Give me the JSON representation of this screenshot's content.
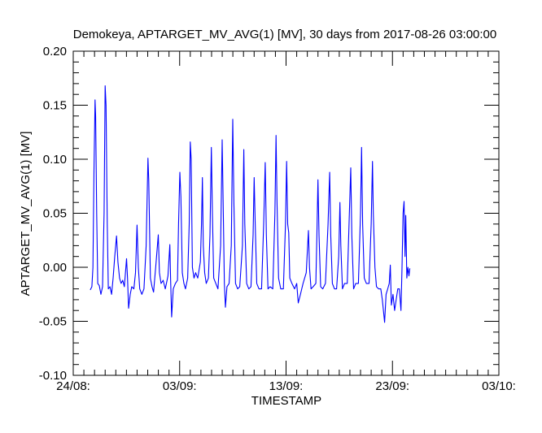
{
  "chart_data": {
    "type": "line",
    "title": "Demokeya, APTARGET_MV_AVG(1) [MV], 30 days from  2017-08-26 03:00:00",
    "xlabel": "TIMESTAMP",
    "ylabel": "APTARGET_MV_AVG(1) [MV]",
    "xlim_days_from_24_08": [
      0,
      40
    ],
    "ylim": [
      -0.1,
      0.2
    ],
    "x_ticks": [
      {
        "day": 0,
        "label": "24/08:"
      },
      {
        "day": 10,
        "label": "03/09:"
      },
      {
        "day": 20,
        "label": "13/09:"
      },
      {
        "day": 30,
        "label": "23/09:"
      },
      {
        "day": 40,
        "label": "03/10:"
      }
    ],
    "y_ticks": [
      {
        "value": -0.1,
        "label": "-0.10"
      },
      {
        "value": -0.05,
        "label": "-0.05"
      },
      {
        "value": 0.0,
        "label": "0.00"
      },
      {
        "value": 0.05,
        "label": "0.05"
      },
      {
        "value": 0.1,
        "label": "0.10"
      },
      {
        "value": 0.15,
        "label": "0.15"
      },
      {
        "value": 0.2,
        "label": "0.20"
      }
    ],
    "x_minor_step_days": 1,
    "y_minor_step": 0.01,
    "grid": false,
    "series": [
      {
        "name": "APTARGET_MV_AVG(1)",
        "color": "#0000ff",
        "points": [
          [
            1.6,
            -0.021
          ],
          [
            1.75,
            -0.018
          ],
          [
            1.85,
            0.0
          ],
          [
            1.95,
            0.09
          ],
          [
            2.05,
            0.155
          ],
          [
            2.1,
            0.14
          ],
          [
            2.2,
            0.05
          ],
          [
            2.3,
            -0.015
          ],
          [
            2.45,
            -0.017
          ],
          [
            2.6,
            -0.025
          ],
          [
            2.75,
            -0.018
          ],
          [
            2.9,
            0.05
          ],
          [
            3.0,
            0.168
          ],
          [
            3.08,
            0.15
          ],
          [
            3.2,
            0.04
          ],
          [
            3.3,
            -0.02
          ],
          [
            3.45,
            -0.018
          ],
          [
            3.6,
            -0.025
          ],
          [
            3.75,
            -0.01
          ],
          [
            3.9,
            0.01
          ],
          [
            4.07,
            0.029
          ],
          [
            4.2,
            0.005
          ],
          [
            4.35,
            -0.01
          ],
          [
            4.5,
            -0.015
          ],
          [
            4.65,
            -0.012
          ],
          [
            4.8,
            -0.018
          ],
          [
            5.01,
            0.008
          ],
          [
            5.1,
            -0.01
          ],
          [
            5.2,
            -0.038
          ],
          [
            5.35,
            -0.025
          ],
          [
            5.5,
            -0.018
          ],
          [
            5.7,
            -0.02
          ],
          [
            5.85,
            -0.005
          ],
          [
            6.0,
            0.039
          ],
          [
            6.12,
            0.0
          ],
          [
            6.25,
            -0.02
          ],
          [
            6.45,
            -0.025
          ],
          [
            6.65,
            -0.02
          ],
          [
            6.85,
            0.02
          ],
          [
            7.02,
            0.101
          ],
          [
            7.1,
            0.08
          ],
          [
            7.25,
            -0.01
          ],
          [
            7.4,
            -0.018
          ],
          [
            7.55,
            -0.023
          ],
          [
            7.75,
            0.0
          ],
          [
            7.99,
            0.03
          ],
          [
            8.1,
            -0.005
          ],
          [
            8.25,
            -0.015
          ],
          [
            8.45,
            -0.012
          ],
          [
            8.65,
            -0.02
          ],
          [
            8.9,
            -0.008
          ],
          [
            9.08,
            0.021
          ],
          [
            9.15,
            -0.01
          ],
          [
            9.25,
            -0.046
          ],
          [
            9.4,
            -0.02
          ],
          [
            9.6,
            -0.015
          ],
          [
            9.8,
            -0.012
          ],
          [
            9.9,
            0.04
          ],
          [
            10.02,
            0.088
          ],
          [
            10.12,
            0.065
          ],
          [
            10.25,
            -0.005
          ],
          [
            10.4,
            -0.015
          ],
          [
            10.55,
            -0.02
          ],
          [
            10.75,
            -0.01
          ],
          [
            10.9,
            0.04
          ],
          [
            11.0,
            0.116
          ],
          [
            11.08,
            0.1
          ],
          [
            11.2,
            0.0
          ],
          [
            11.35,
            -0.01
          ],
          [
            11.5,
            -0.005
          ],
          [
            11.7,
            -0.01
          ],
          [
            11.95,
            0.005
          ],
          [
            12.05,
            0.04
          ],
          [
            12.14,
            0.083
          ],
          [
            12.22,
            0.02
          ],
          [
            12.35,
            -0.005
          ],
          [
            12.5,
            -0.015
          ],
          [
            12.7,
            -0.01
          ],
          [
            12.85,
            0.03
          ],
          [
            12.98,
            0.111
          ],
          [
            13.08,
            0.05
          ],
          [
            13.2,
            -0.01
          ],
          [
            13.4,
            -0.015
          ],
          [
            13.6,
            -0.02
          ],
          [
            13.85,
            0.02
          ],
          [
            14.0,
            0.118
          ],
          [
            14.1,
            0.05
          ],
          [
            14.2,
            -0.015
          ],
          [
            14.3,
            -0.037
          ],
          [
            14.45,
            -0.018
          ],
          [
            14.65,
            -0.015
          ],
          [
            14.85,
            0.02
          ],
          [
            14.99,
            0.137
          ],
          [
            15.1,
            0.06
          ],
          [
            15.25,
            -0.015
          ],
          [
            15.45,
            -0.02
          ],
          [
            15.65,
            -0.018
          ],
          [
            15.9,
            0.02
          ],
          [
            16.03,
            0.109
          ],
          [
            16.12,
            0.04
          ],
          [
            16.3,
            -0.015
          ],
          [
            16.5,
            -0.02
          ],
          [
            16.7,
            -0.018
          ],
          [
            16.9,
            0.03
          ],
          [
            17.0,
            0.083
          ],
          [
            17.1,
            0.04
          ],
          [
            17.25,
            -0.015
          ],
          [
            17.45,
            -0.02
          ],
          [
            17.7,
            -0.02
          ],
          [
            17.9,
            0.04
          ],
          [
            18.04,
            0.097
          ],
          [
            18.15,
            0.03
          ],
          [
            18.3,
            -0.02
          ],
          [
            18.5,
            -0.018
          ],
          [
            18.75,
            -0.02
          ],
          [
            18.95,
            0.05
          ],
          [
            19.06,
            0.122
          ],
          [
            19.15,
            0.06
          ],
          [
            19.3,
            -0.01
          ],
          [
            19.5,
            -0.02
          ],
          [
            19.75,
            -0.02
          ],
          [
            19.95,
            0.04
          ],
          [
            20.05,
            0.098
          ],
          [
            20.15,
            0.04
          ],
          [
            20.25,
            0.032
          ],
          [
            20.35,
            -0.01
          ],
          [
            20.55,
            -0.015
          ],
          [
            20.8,
            -0.02
          ],
          [
            21.0,
            -0.015
          ],
          [
            21.15,
            -0.033
          ],
          [
            21.35,
            -0.025
          ],
          [
            21.6,
            -0.015
          ],
          [
            21.9,
            -0.005
          ],
          [
            22.1,
            0.034
          ],
          [
            22.2,
            0.0
          ],
          [
            22.35,
            -0.02
          ],
          [
            22.55,
            -0.018
          ],
          [
            22.8,
            -0.015
          ],
          [
            22.9,
            0.03
          ],
          [
            23.0,
            0.081
          ],
          [
            23.1,
            0.03
          ],
          [
            23.25,
            -0.018
          ],
          [
            23.45,
            -0.02
          ],
          [
            23.7,
            -0.015
          ],
          [
            23.95,
            0.04
          ],
          [
            24.1,
            0.088
          ],
          [
            24.2,
            0.03
          ],
          [
            24.35,
            -0.015
          ],
          [
            24.55,
            -0.02
          ],
          [
            24.75,
            -0.02
          ],
          [
            24.95,
            0.01
          ],
          [
            25.06,
            0.06
          ],
          [
            25.15,
            0.02
          ],
          [
            25.3,
            -0.02
          ],
          [
            25.5,
            -0.015
          ],
          [
            25.75,
            -0.015
          ],
          [
            25.95,
            0.05
          ],
          [
            26.08,
            0.092
          ],
          [
            26.18,
            0.03
          ],
          [
            26.35,
            -0.02
          ],
          [
            26.55,
            -0.015
          ],
          [
            26.8,
            -0.015
          ],
          [
            27.0,
            0.05
          ],
          [
            27.1,
            0.111
          ],
          [
            27.2,
            0.04
          ],
          [
            27.35,
            -0.01
          ],
          [
            27.55,
            -0.015
          ],
          [
            27.8,
            -0.015
          ],
          [
            28.0,
            0.04
          ],
          [
            28.12,
            0.098
          ],
          [
            28.2,
            0.05
          ],
          [
            28.35,
            0.0
          ],
          [
            28.5,
            -0.018
          ],
          [
            28.7,
            -0.02
          ],
          [
            28.9,
            -0.02
          ],
          [
            29.05,
            -0.03
          ],
          [
            29.26,
            -0.051
          ],
          [
            29.4,
            -0.025
          ],
          [
            29.55,
            -0.02
          ],
          [
            29.7,
            -0.015
          ],
          [
            29.8,
            0.002
          ],
          [
            29.9,
            -0.035
          ],
          [
            30.05,
            -0.025
          ],
          [
            30.2,
            -0.04
          ],
          [
            30.35,
            -0.03
          ],
          [
            30.5,
            -0.02
          ],
          [
            30.65,
            -0.02
          ],
          [
            30.8,
            -0.04
          ],
          [
            30.9,
            0.0
          ],
          [
            31.0,
            0.05
          ],
          [
            31.09,
            0.061
          ],
          [
            31.18,
            0.01
          ],
          [
            31.25,
            0.048
          ],
          [
            31.35,
            -0.01
          ],
          [
            31.45,
            0.0
          ],
          [
            31.55,
            -0.008
          ],
          [
            31.63,
            -0.001
          ]
        ]
      }
    ]
  }
}
